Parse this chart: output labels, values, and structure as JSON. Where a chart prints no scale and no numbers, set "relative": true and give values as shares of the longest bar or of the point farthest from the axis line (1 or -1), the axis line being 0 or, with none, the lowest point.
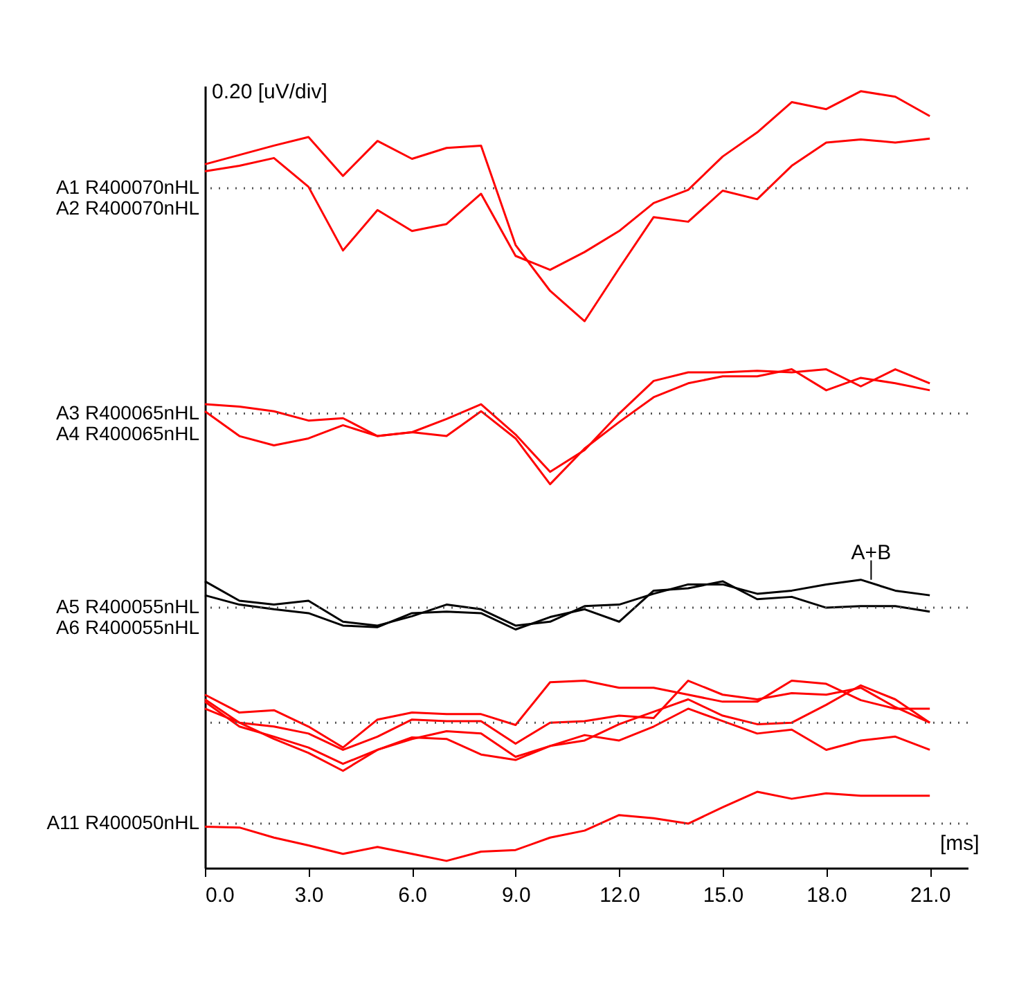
{
  "chart_data": {
    "type": "line",
    "relative": true,
    "xlabel": "[ms]",
    "x": [
      0,
      1,
      2,
      3,
      4,
      5,
      6,
      7,
      8,
      9,
      10,
      11,
      12,
      13,
      14,
      15,
      16,
      17,
      18,
      19,
      20,
      21
    ],
    "xlim": [
      0,
      22.1
    ],
    "xticks": [
      {
        "value": 0,
        "label": "0.0"
      },
      {
        "value": 3,
        "label": "3.0"
      },
      {
        "value": 6,
        "label": "6.0"
      },
      {
        "value": 9,
        "label": "9.0"
      },
      {
        "value": 12,
        "label": "12.0"
      },
      {
        "value": 15,
        "label": "15.0"
      },
      {
        "value": 18,
        "label": "18.0"
      },
      {
        "value": 21,
        "label": "21.0"
      }
    ],
    "series": [
      {
        "color": "#ff0000",
        "values": [
          0.906,
          0.918,
          0.93,
          0.941,
          0.891,
          0.936,
          0.913,
          0.927,
          0.93,
          0.802,
          0.743,
          0.704,
          0.772,
          0.838,
          0.832,
          0.872,
          0.861,
          0.904,
          0.934,
          0.938,
          0.934,
          0.939
        ]
      },
      {
        "color": "#ff0000",
        "values": [
          0.897,
          0.904,
          0.914,
          0.877,
          0.795,
          0.847,
          0.82,
          0.829,
          0.868,
          0.788,
          0.77,
          0.793,
          0.82,
          0.856,
          0.873,
          0.916,
          0.947,
          0.986,
          0.977,
          1.0,
          0.993,
          0.968
        ]
      },
      {
        "color": "#ff0000",
        "values": [
          0.597,
          0.594,
          0.588,
          0.576,
          0.579,
          0.556,
          0.561,
          0.578,
          0.597,
          0.558,
          0.51,
          0.538,
          0.585,
          0.627,
          0.638,
          0.638,
          0.64,
          0.638,
          0.642,
          0.62,
          0.642,
          0.624
        ]
      },
      {
        "color": "#ff0000",
        "values": [
          0.588,
          0.556,
          0.544,
          0.553,
          0.57,
          0.556,
          0.561,
          0.556,
          0.588,
          0.553,
          0.494,
          0.54,
          0.574,
          0.606,
          0.624,
          0.633,
          0.633,
          0.642,
          0.615,
          0.631,
          0.624,
          0.615
        ]
      },
      {
        "color": "#000000",
        "values": [
          0.369,
          0.344,
          0.339,
          0.344,
          0.317,
          0.312,
          0.324,
          0.339,
          0.333,
          0.312,
          0.317,
          0.337,
          0.339,
          0.353,
          0.365,
          0.365,
          0.353,
          0.357,
          0.365,
          0.371,
          0.357,
          0.351
        ]
      },
      {
        "color": "#000000",
        "values": [
          0.351,
          0.339,
          0.333,
          0.328,
          0.312,
          0.31,
          0.328,
          0.33,
          0.328,
          0.307,
          0.323,
          0.333,
          0.317,
          0.357,
          0.36,
          0.369,
          0.346,
          0.349,
          0.335,
          0.337,
          0.337,
          0.33
        ]
      },
      {
        "color": "#ff0000",
        "values": [
          0.223,
          0.2,
          0.203,
          0.182,
          0.155,
          0.191,
          0.2,
          0.198,
          0.198,
          0.184,
          0.239,
          0.241,
          0.232,
          0.232,
          0.223,
          0.214,
          0.214,
          0.241,
          0.237,
          0.216,
          0.205,
          0.205
        ]
      },
      {
        "color": "#ff0000",
        "values": [
          0.205,
          0.187,
          0.182,
          0.173,
          0.152,
          0.169,
          0.191,
          0.189,
          0.189,
          0.16,
          0.187,
          0.189,
          0.196,
          0.193,
          0.241,
          0.223,
          0.217,
          0.225,
          0.223,
          0.232,
          0.207,
          0.187
        ]
      },
      {
        "color": "#ff0000",
        "values": [
          0.214,
          0.182,
          0.169,
          0.155,
          0.134,
          0.152,
          0.166,
          0.176,
          0.173,
          0.143,
          0.157,
          0.164,
          0.185,
          0.201,
          0.217,
          0.196,
          0.185,
          0.187,
          0.21,
          0.235,
          0.217,
          0.187
        ]
      },
      {
        "color": "#ff0000",
        "values": [
          0.217,
          0.187,
          0.166,
          0.148,
          0.125,
          0.152,
          0.168,
          0.166,
          0.146,
          0.139,
          0.157,
          0.171,
          0.164,
          0.182,
          0.205,
          0.189,
          0.173,
          0.178,
          0.152,
          0.164,
          0.169,
          0.152
        ]
      },
      {
        "color": "#ff0000",
        "values": [
          0.053,
          0.052,
          0.039,
          0.029,
          0.018,
          0.027,
          0.018,
          0.009,
          0.021,
          0.023,
          0.039,
          0.048,
          0.068,
          0.064,
          0.057,
          0.078,
          0.098,
          0.089,
          0.096,
          0.093,
          0.093,
          0.093
        ]
      }
    ],
    "ref_lines": [
      {
        "axis": "y",
        "value": 0.875,
        "label": [
          "A1 R400070nHL",
          "A2 R400070nHL"
        ],
        "color": "#555555",
        "line_style": "dotted"
      },
      {
        "axis": "y",
        "value": 0.585,
        "label": [
          "A3 R400065nHL",
          "A4 R400065nHL"
        ],
        "color": "#555555",
        "line_style": "dotted"
      },
      {
        "axis": "y",
        "value": 0.335,
        "label": [
          "A5 R400055nHL",
          "A6 R400055nHL"
        ],
        "color": "#555555",
        "line_style": "dotted"
      },
      {
        "axis": "y",
        "value": 0.187,
        "label": null,
        "color": "#555555",
        "line_style": "dotted"
      },
      {
        "axis": "y",
        "value": 0.057,
        "label": "A11 R400050nHL",
        "color": "#555555",
        "line_style": "dotted"
      }
    ],
    "annotations": [
      "0.20 [uV/div]",
      {
        "text": "A+B",
        "x": 19.3,
        "y": 0.371
      }
    ],
    "line_style": "solid"
  }
}
